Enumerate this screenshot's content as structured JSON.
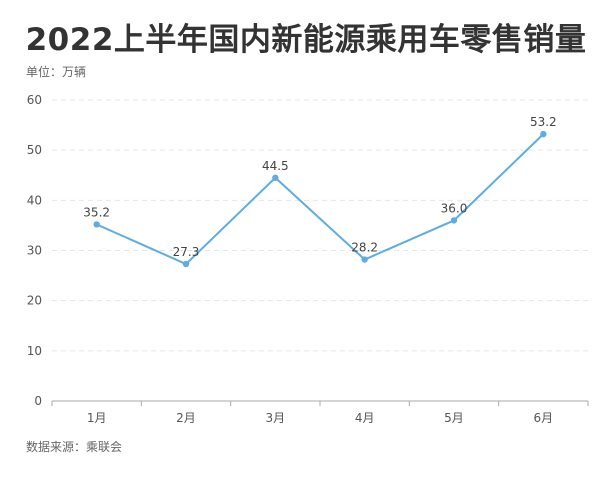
{
  "header": {
    "unit": "单位：万辆",
    "source": "数据来源：乘联会"
  },
  "chart_data": {
    "type": "line",
    "title": "2022上半年国内新能源乘用车零售销量",
    "xlabel": "",
    "ylabel": "",
    "categories": [
      "1月",
      "2月",
      "3月",
      "4月",
      "5月",
      "6月"
    ],
    "series": [
      {
        "values": [
          35.2,
          27.3,
          44.5,
          28.2,
          36.0,
          53.2
        ]
      }
    ],
    "data_labels": [
      "35.2",
      "27.3",
      "44.5",
      "28.2",
      "36.0",
      "53.2"
    ],
    "ylim": [
      0,
      60
    ],
    "yticks": [
      0,
      10,
      20,
      30,
      40,
      50,
      60
    ],
    "grid": true,
    "line_color": "#5dade2",
    "grid_color": "#e6e6e6",
    "axis_color": "#aaaaaa",
    "legend": "none"
  }
}
